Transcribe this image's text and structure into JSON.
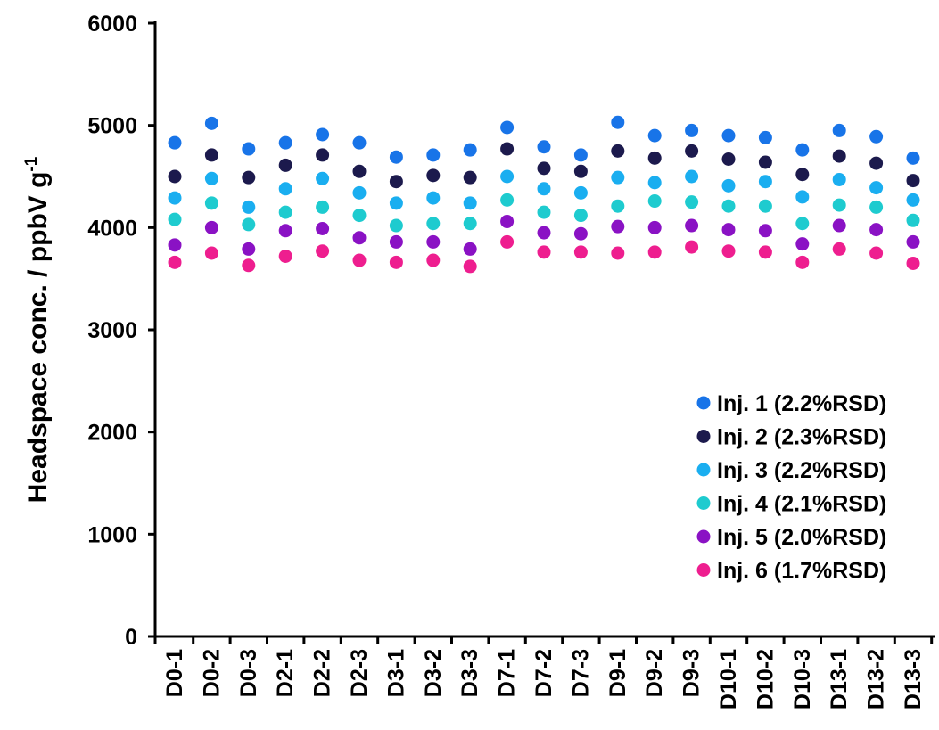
{
  "chart_data": {
    "type": "scatter",
    "title": "",
    "xlabel": "",
    "ylabel": "Headspace conc. / ppbV g",
    "ylabel_superscript": "-1",
    "ylim": [
      0,
      6000
    ],
    "yticks": [
      "0",
      "1000",
      "2000",
      "3000",
      "4000",
      "5000",
      "6000"
    ],
    "ytick_values": [
      0,
      1000,
      2000,
      3000,
      4000,
      5000,
      6000
    ],
    "grid": false,
    "legend_position": "bottom-right",
    "categories": [
      "D0-1",
      "D0-2",
      "D0-3",
      "D2-1",
      "D2-2",
      "D2-3",
      "D3-1",
      "D3-2",
      "D3-3",
      "D7-1",
      "D7-2",
      "D7-3",
      "D9-1",
      "D9-2",
      "D9-3",
      "D10-1",
      "D10-2",
      "D10-3",
      "D13-1",
      "D13-2",
      "D13-3"
    ],
    "series": [
      {
        "name": "Inj. 1 (2.2%RSD)",
        "color": "#1874e8",
        "values": [
          4830,
          5020,
          4770,
          4830,
          4910,
          4830,
          4690,
          4710,
          4760,
          4980,
          4790,
          4710,
          5030,
          4900,
          4950,
          4900,
          4880,
          4760,
          4950,
          4890,
          4680
        ]
      },
      {
        "name": "Inj. 2 (2.3%RSD)",
        "color": "#1c1a4d",
        "values": [
          4500,
          4710,
          4490,
          4610,
          4710,
          4550,
          4450,
          4510,
          4490,
          4770,
          4580,
          4550,
          4750,
          4680,
          4750,
          4670,
          4640,
          4520,
          4700,
          4630,
          4460
        ]
      },
      {
        "name": "Inj. 3 (2.2%RSD)",
        "color": "#1aaef0",
        "values": [
          4290,
          4480,
          4200,
          4380,
          4480,
          4340,
          4240,
          4290,
          4240,
          4500,
          4380,
          4340,
          4490,
          4440,
          4500,
          4410,
          4450,
          4300,
          4470,
          4390,
          4270
        ]
      },
      {
        "name": "Inj. 4 (2.1%RSD)",
        "color": "#1ecbcf",
        "values": [
          4080,
          4240,
          4030,
          4150,
          4200,
          4120,
          4020,
          4040,
          4040,
          4270,
          4150,
          4120,
          4210,
          4260,
          4250,
          4210,
          4210,
          4040,
          4220,
          4200,
          4070
        ]
      },
      {
        "name": "Inj. 5 (2.0%RSD)",
        "color": "#8a12c4",
        "values": [
          3830,
          4000,
          3790,
          3970,
          3990,
          3900,
          3860,
          3860,
          3790,
          4060,
          3950,
          3940,
          4010,
          4000,
          4020,
          3980,
          3970,
          3840,
          4020,
          3980,
          3860
        ]
      },
      {
        "name": "Inj. 6 (1.7%RSD)",
        "color": "#ee1e8f",
        "values": [
          3660,
          3750,
          3630,
          3720,
          3770,
          3680,
          3660,
          3680,
          3620,
          3860,
          3760,
          3760,
          3750,
          3760,
          3810,
          3770,
          3760,
          3660,
          3790,
          3750,
          3650
        ]
      }
    ]
  }
}
